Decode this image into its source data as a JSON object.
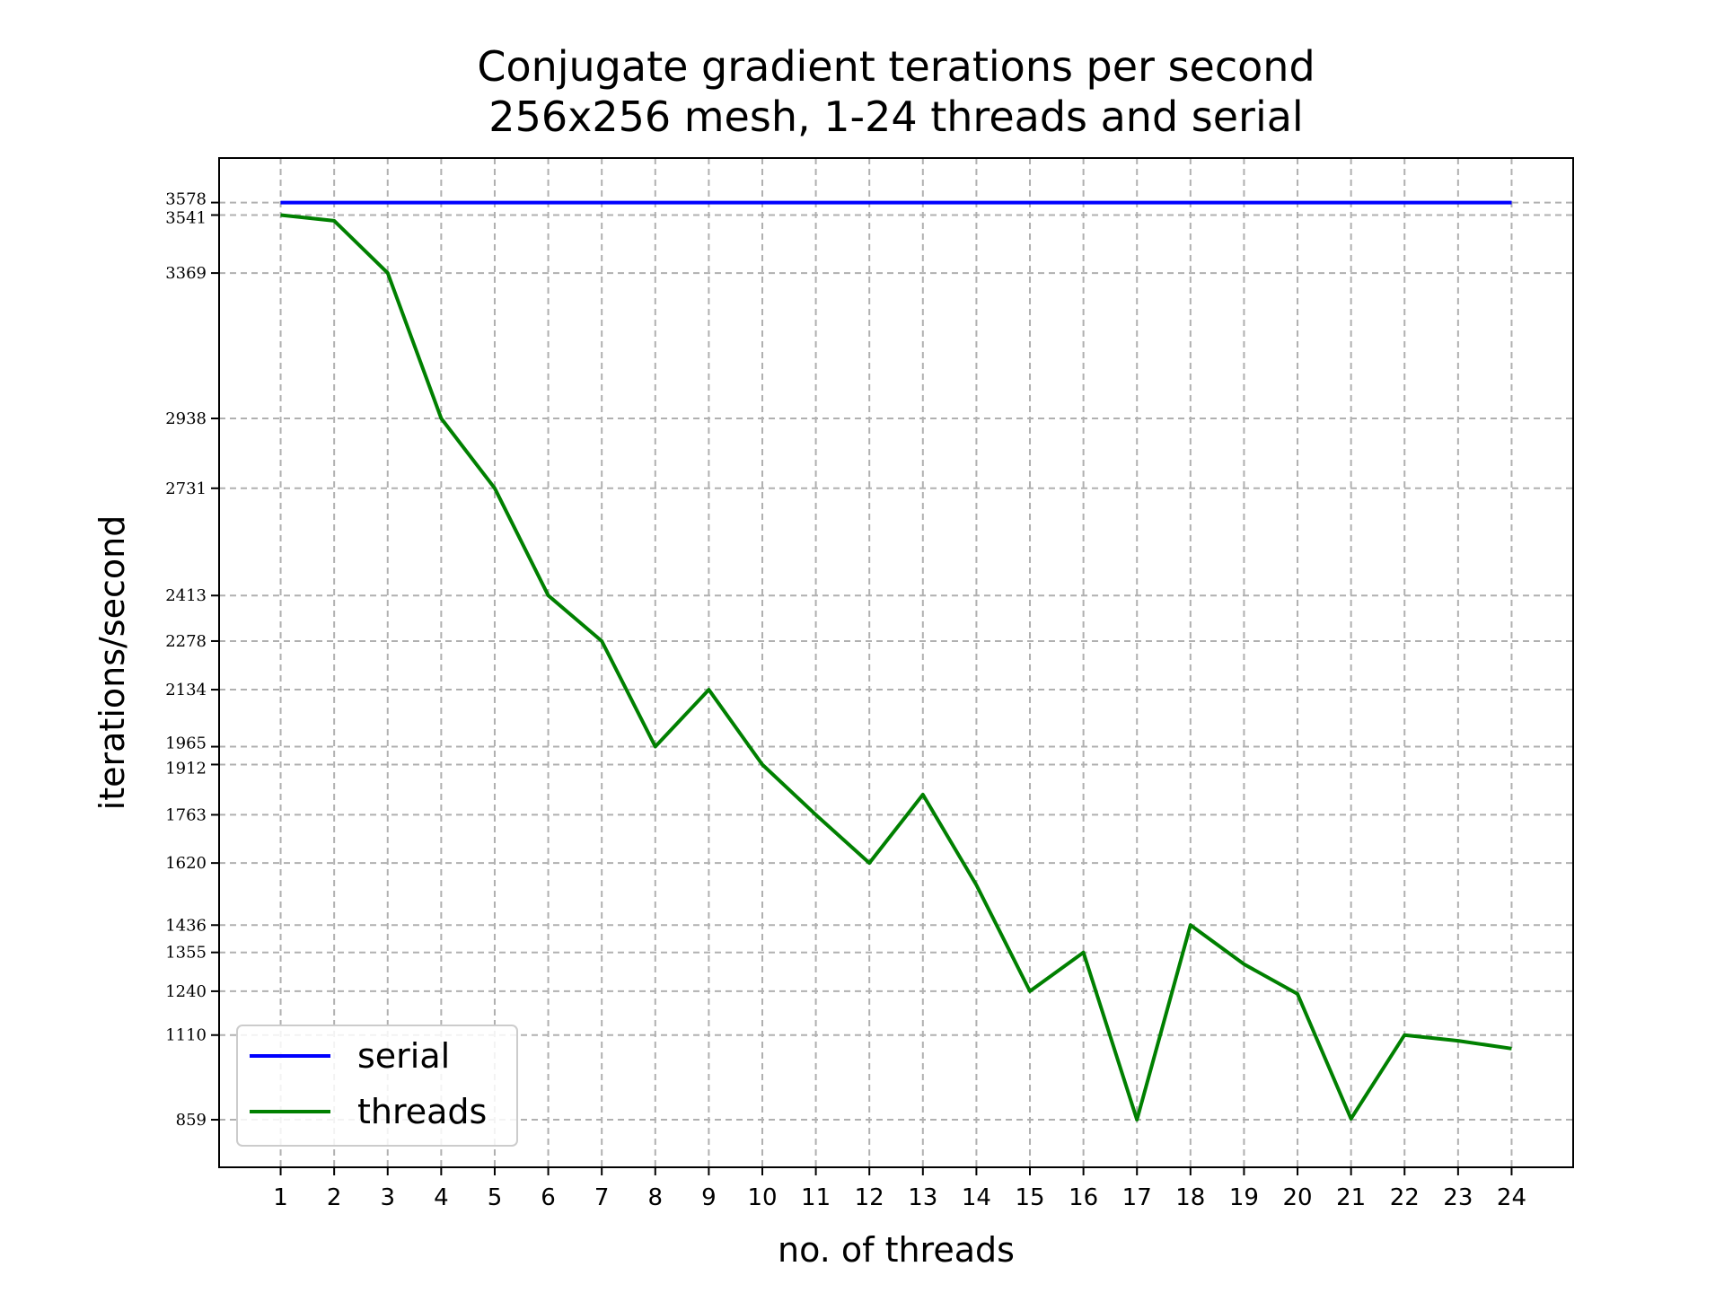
{
  "chart_data": {
    "type": "line",
    "title": "Conjugate gradient terations per second",
    "subtitle": "256x256 mesh, 1-24 threads and serial",
    "xlabel": "no. of threads",
    "ylabel": "iterations/second",
    "x": [
      1,
      2,
      3,
      4,
      5,
      6,
      7,
      8,
      9,
      10,
      11,
      12,
      13,
      14,
      15,
      16,
      17,
      18,
      19,
      20,
      21,
      22,
      23,
      24
    ],
    "xlim": [
      -0.15,
      25.15
    ],
    "ylim": [
      718,
      3710
    ],
    "yticks": [
      3578,
      3541,
      3369,
      2938,
      2731,
      2413,
      2278,
      2134,
      1965,
      1912,
      1763,
      1620,
      1436,
      1355,
      1240,
      1110,
      859
    ],
    "grid": true,
    "legend_position": "lower-left",
    "series": [
      {
        "name": "serial",
        "color": "#0000ff",
        "values": [
          3578,
          3578,
          3578,
          3578,
          3578,
          3578,
          3578,
          3578,
          3578,
          3578,
          3578,
          3578,
          3578,
          3578,
          3578,
          3578,
          3578,
          3578,
          3578,
          3578,
          3578,
          3578,
          3578,
          3578
        ]
      },
      {
        "name": "threads",
        "color": "#008000",
        "values": [
          3541,
          3524,
          3369,
          2938,
          2731,
          2413,
          2278,
          1965,
          2134,
          1912,
          1763,
          1620,
          1823,
          1555,
          1240,
          1355,
          859,
          1436,
          1320,
          1232,
          862,
          1110,
          1093,
          1070
        ]
      }
    ]
  }
}
